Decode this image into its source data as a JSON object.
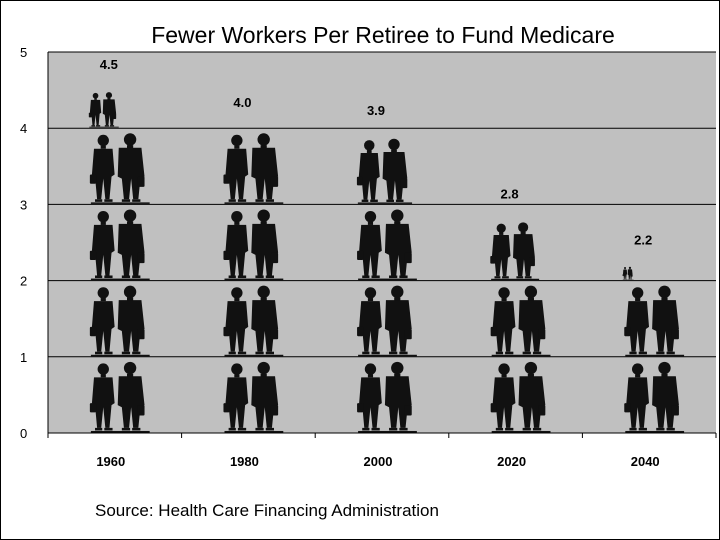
{
  "chart_data": {
    "type": "bar",
    "title": "Fewer Workers Per Retiree to Fund Medicare",
    "categories": [
      "1960",
      "1980",
      "2000",
      "2020",
      "2040"
    ],
    "values": [
      4.5,
      4.0,
      3.9,
      2.8,
      2.2
    ],
    "value_labels": [
      "4.5",
      "4.0",
      "3.9",
      "2.8",
      "2.2"
    ],
    "ylim": [
      0,
      5
    ],
    "yticks": [
      "0",
      "1",
      "2",
      "3",
      "4",
      "5"
    ],
    "grid": true,
    "marker": "worker-pair-silhouette",
    "plot_color": "#c0c0c0",
    "figure_color": "#111111",
    "source": "Source:  Health Care Financing Administration"
  }
}
